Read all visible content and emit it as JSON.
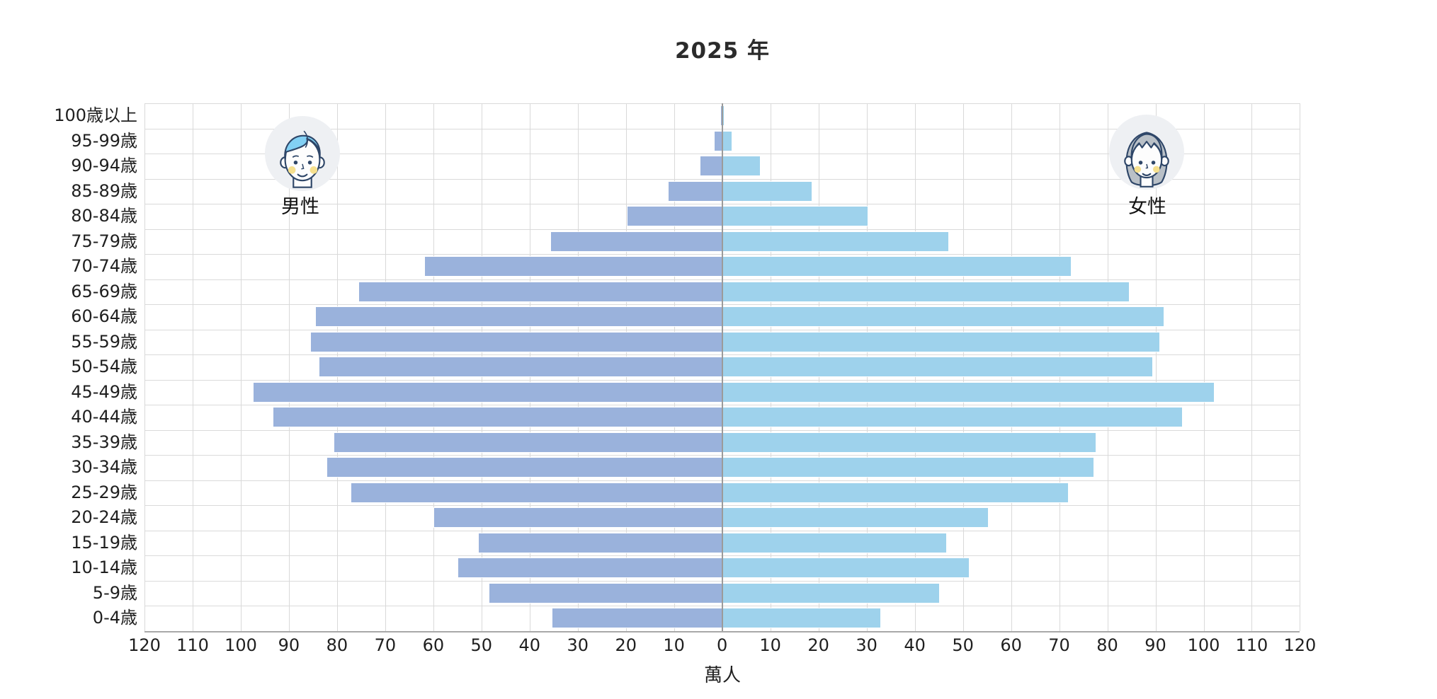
{
  "title": "2025 年",
  "chart_data": {
    "type": "bar",
    "subtype": "population-pyramid",
    "title": "2025 年",
    "unit": "萬人",
    "grid": true,
    "categories_top_to_bottom": [
      "100歳以上",
      "95-99歳",
      "90-94歳",
      "85-89歳",
      "80-84歳",
      "75-79歳",
      "70-74歳",
      "65-69歳",
      "60-64歳",
      "55-59歳",
      "50-54歳",
      "45-49歳",
      "40-44歳",
      "35-39歳",
      "30-34歳",
      "25-29歳",
      "20-24歳",
      "15-19歳",
      "10-14歳",
      "5-9歳",
      "0-4歳"
    ],
    "series": [
      {
        "name": "男性",
        "side": "left",
        "color": "#9ab2dc",
        "icon": "male-avatar-icon",
        "values": [
          0.3,
          1.6,
          4.5,
          11.2,
          19.7,
          35.5,
          61.7,
          75.4,
          84.4,
          85.4,
          83.7,
          97.4,
          93.2,
          80.6,
          82.1,
          77.1,
          59.8,
          50.6,
          54.9,
          48.3,
          35.3
        ]
      },
      {
        "name": "女性",
        "side": "right",
        "color": "#9ed2ec",
        "icon": "female-avatar-icon",
        "values": [
          0.3,
          2.0,
          7.8,
          18.6,
          30.2,
          47.0,
          72.4,
          84.5,
          91.7,
          90.8,
          89.3,
          102.1,
          95.5,
          77.6,
          77.2,
          71.8,
          55.2,
          46.6,
          51.3,
          45.1,
          32.9
        ]
      }
    ],
    "x_axis": {
      "label": "萬人",
      "max_each_side": 120,
      "tick_step": 10,
      "ticks": [
        120,
        110,
        100,
        90,
        80,
        70,
        60,
        50,
        40,
        30,
        20,
        10,
        0,
        10,
        20,
        30,
        40,
        50,
        60,
        70,
        80,
        90,
        100,
        110,
        120
      ]
    },
    "colors": {
      "male_bar": "#9ab2dc",
      "female_bar": "#9ed2ec",
      "gridline": "#d9d9d9",
      "center_axis": "#9b9b9b",
      "text": "#1f1f1f"
    }
  }
}
